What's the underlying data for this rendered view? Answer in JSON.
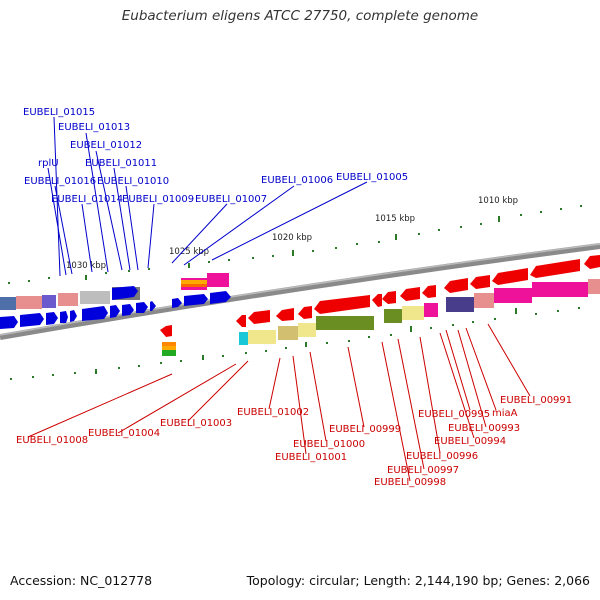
{
  "title": "Eubacterium eligens ATCC 27750, complete genome",
  "accession": "Accession: NC_012778",
  "topology": "Topology: circular; Length: 2,144,190 bp; Genes: 2,066",
  "ticks": [
    "1030 kbp",
    "1025 kbp",
    "1020 kbp",
    "1015 kbp",
    "1010 kbp"
  ],
  "colors": {
    "forward": "#0000cc",
    "reverse": "#cc0000",
    "backbone": "#7a7a7a",
    "tickmark": "#2a7a2a"
  },
  "upper_labels": [
    "EUBELI_01015",
    "EUBELI_01013",
    "EUBELI_01012",
    "rplU",
    "EUBELI_01011",
    "EUBELI_01016",
    "EUBELI_01010",
    "EUBELI_01014",
    "EUBELI_01009",
    "EUBELI_01007",
    "EUBELI_01006",
    "EUBELI_01005"
  ],
  "lower_labels": [
    "EUBELI_00991",
    "miaA",
    "EUBELI_00995",
    "EUBELI_00993",
    "EUBELI_00994",
    "EUBELI_00996",
    "EUBELI_00997",
    "EUBELI_00998",
    "EUBELI_00999",
    "EUBELI_01000",
    "EUBELI_01001",
    "EUBELI_01002",
    "EUBELI_01003",
    "EUBELI_01004",
    "EUBELI_01008"
  ]
}
